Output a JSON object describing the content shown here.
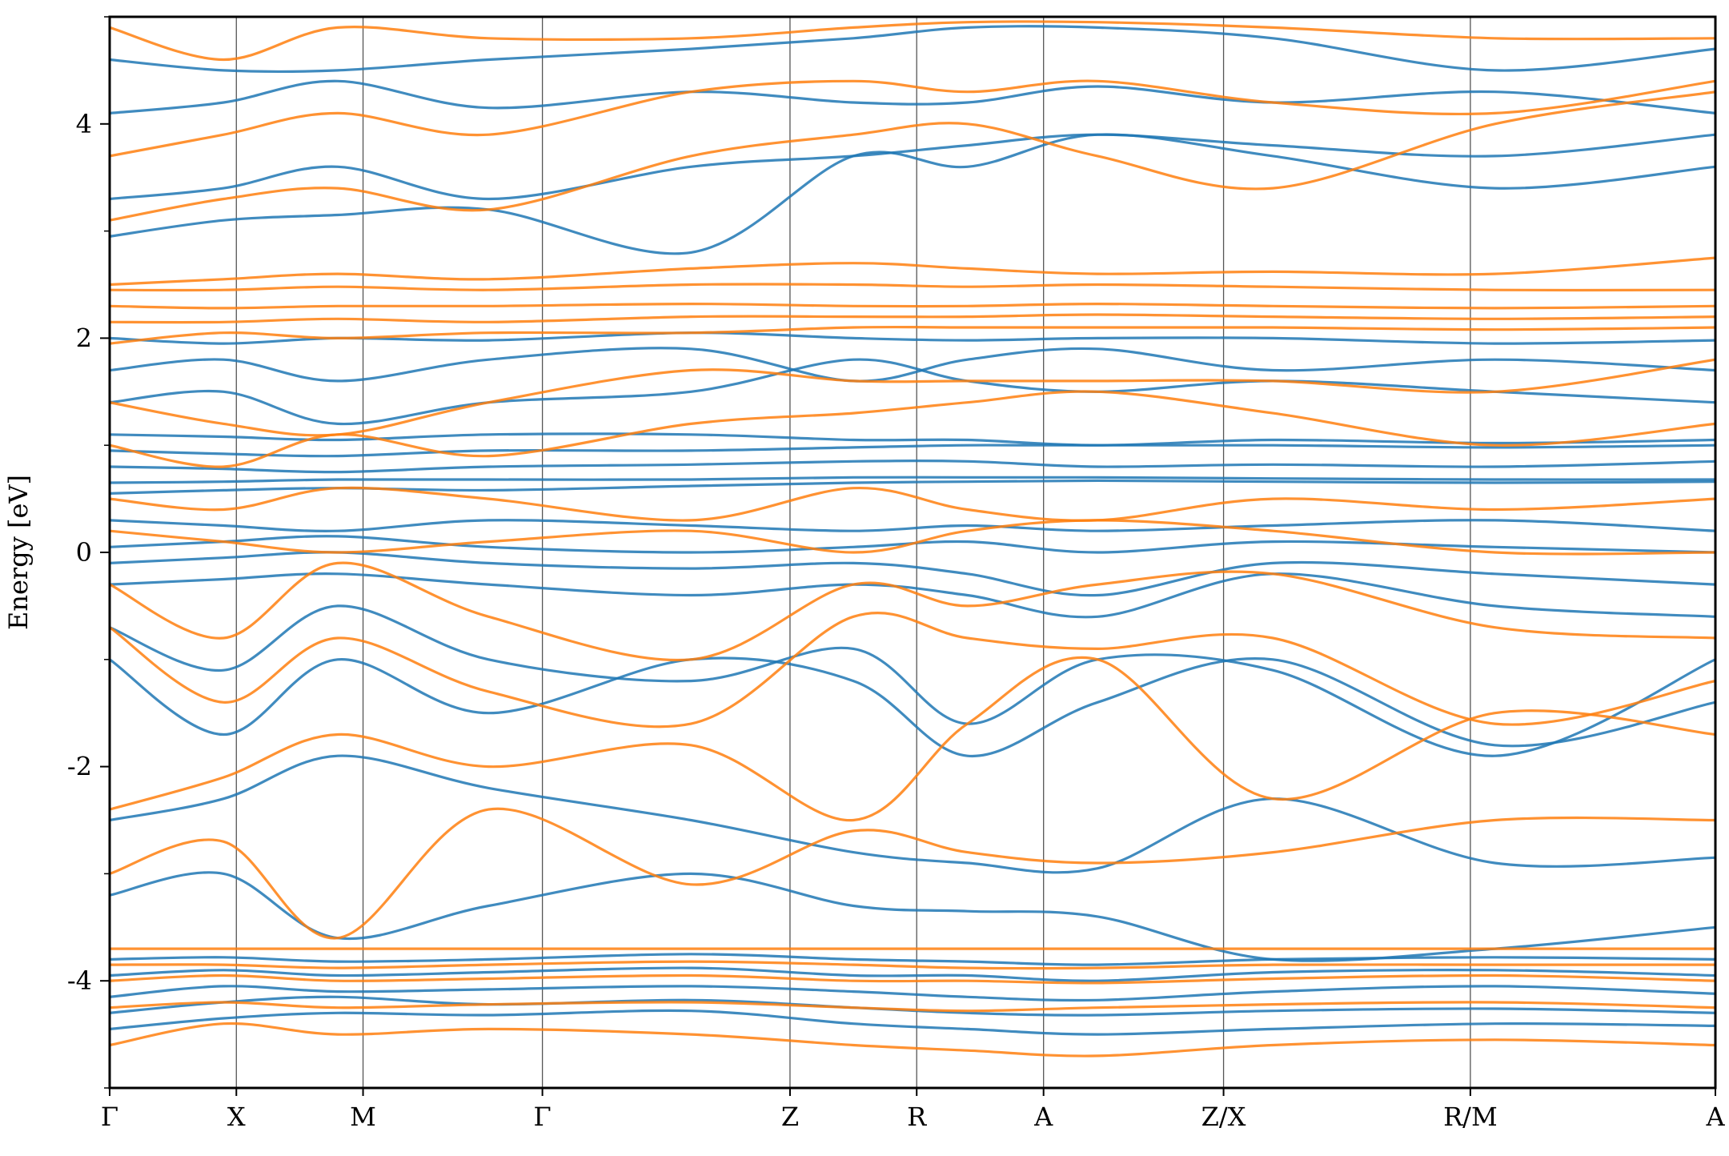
{
  "chart_data": {
    "type": "line",
    "title": "",
    "xlabel": "",
    "ylabel": "Energy [eV]",
    "ylim": [
      -5,
      5
    ],
    "yticks": [
      -4,
      -2,
      0,
      2,
      4
    ],
    "ytick_labels": [
      "-4",
      "-2",
      "0",
      "2",
      "4"
    ],
    "ylim_minor_ticks": [
      -5,
      -3,
      -1,
      1,
      3,
      5
    ],
    "x_domain": [
      0,
      1
    ],
    "kpoints": [
      {
        "label": "Γ",
        "x": 0.0
      },
      {
        "label": "X",
        "x": 0.0789
      },
      {
        "label": "M",
        "x": 0.1578
      },
      {
        "label": "Γ",
        "x": 0.2695
      },
      {
        "label": "Z",
        "x": 0.4237
      },
      {
        "label": "R",
        "x": 0.5026
      },
      {
        "label": "A",
        "x": 0.5816
      },
      {
        "label": "Z/X",
        "x": 0.6937
      },
      {
        "label": "R/M",
        "x": 0.8474
      },
      {
        "label": "A",
        "x": 1.0
      }
    ],
    "grid": false,
    "legend": "none",
    "series_colors": {
      "spin_up": "#1f77b4",
      "spin_down": "#ff7f0e"
    },
    "series": [
      {
        "group": "spin_up",
        "color": "#1f77b4",
        "y": [
          -4.45,
          -4.35,
          -4.3,
          -4.32,
          -4.28,
          -4.4,
          -4.45,
          -4.5,
          -4.45,
          -4.4,
          -4.42
        ]
      },
      {
        "group": "spin_up",
        "color": "#1f77b4",
        "y": [
          -4.3,
          -4.2,
          -4.15,
          -4.22,
          -4.18,
          -4.25,
          -4.3,
          -4.32,
          -4.28,
          -4.26,
          -4.3
        ]
      },
      {
        "group": "spin_up",
        "color": "#1f77b4",
        "y": [
          -4.15,
          -4.05,
          -4.1,
          -4.08,
          -4.05,
          -4.1,
          -4.15,
          -4.18,
          -4.1,
          -4.05,
          -4.12
        ]
      },
      {
        "group": "spin_up",
        "color": "#1f77b4",
        "y": [
          -3.95,
          -3.9,
          -3.95,
          -3.92,
          -3.88,
          -3.95,
          -3.95,
          -4.0,
          -3.92,
          -3.9,
          -3.95
        ]
      },
      {
        "group": "spin_up",
        "color": "#1f77b4",
        "y": [
          -3.8,
          -3.78,
          -3.82,
          -3.8,
          -3.75,
          -3.8,
          -3.82,
          -3.85,
          -3.8,
          -3.78,
          -3.8
        ]
      },
      {
        "group": "spin_up",
        "color": "#1f77b4",
        "y": [
          -3.2,
          -3.0,
          -3.6,
          -3.3,
          -3.0,
          -3.3,
          -3.35,
          -3.4,
          -3.8,
          -3.7,
          -3.5
        ]
      },
      {
        "group": "spin_up",
        "color": "#1f77b4",
        "y": [
          -2.5,
          -2.3,
          -1.9,
          -2.2,
          -2.5,
          -2.8,
          -2.9,
          -2.95,
          -2.3,
          -2.9,
          -2.85
        ]
      },
      {
        "group": "spin_up",
        "color": "#1f77b4",
        "y": [
          -1.0,
          -1.7,
          -1.0,
          -1.5,
          -1.0,
          -1.2,
          -1.9,
          -1.4,
          -1.0,
          -1.8,
          -1.4
        ]
      },
      {
        "group": "spin_up",
        "color": "#1f77b4",
        "y": [
          -0.7,
          -1.1,
          -0.5,
          -1.0,
          -1.2,
          -0.9,
          -1.6,
          -1.0,
          -1.1,
          -1.9,
          -1.0
        ]
      },
      {
        "group": "spin_up",
        "color": "#1f77b4",
        "y": [
          -0.3,
          -0.25,
          -0.2,
          -0.3,
          -0.4,
          -0.3,
          -0.4,
          -0.6,
          -0.2,
          -0.5,
          -0.6
        ]
      },
      {
        "group": "spin_up",
        "color": "#1f77b4",
        "y": [
          -0.1,
          -0.05,
          0.0,
          -0.1,
          -0.15,
          -0.1,
          -0.2,
          -0.4,
          -0.1,
          -0.2,
          -0.3
        ]
      },
      {
        "group": "spin_up",
        "color": "#1f77b4",
        "y": [
          0.05,
          0.1,
          0.15,
          0.05,
          0.0,
          0.05,
          0.1,
          0.0,
          0.1,
          0.05,
          0.0
        ]
      },
      {
        "group": "spin_up",
        "color": "#1f77b4",
        "y": [
          0.3,
          0.25,
          0.2,
          0.3,
          0.25,
          0.2,
          0.25,
          0.2,
          0.25,
          0.3,
          0.2
        ]
      },
      {
        "group": "spin_up",
        "color": "#1f77b4",
        "y": [
          0.55,
          0.58,
          0.6,
          0.58,
          0.62,
          0.65,
          0.66,
          0.67,
          0.66,
          0.65,
          0.66
        ]
      },
      {
        "group": "spin_up",
        "color": "#1f77b4",
        "y": [
          0.65,
          0.66,
          0.68,
          0.68,
          0.68,
          0.7,
          0.7,
          0.7,
          0.69,
          0.68,
          0.68
        ]
      },
      {
        "group": "spin_up",
        "color": "#1f77b4",
        "y": [
          0.8,
          0.78,
          0.75,
          0.8,
          0.82,
          0.85,
          0.85,
          0.8,
          0.82,
          0.8,
          0.85
        ]
      },
      {
        "group": "spin_up",
        "color": "#1f77b4",
        "y": [
          0.95,
          0.92,
          0.9,
          0.95,
          0.95,
          0.98,
          1.0,
          1.0,
          1.0,
          0.98,
          1.0
        ]
      },
      {
        "group": "spin_up",
        "color": "#1f77b4",
        "y": [
          1.1,
          1.08,
          1.05,
          1.1,
          1.1,
          1.05,
          1.05,
          1.0,
          1.05,
          1.02,
          1.05
        ]
      },
      {
        "group": "spin_up",
        "color": "#1f77b4",
        "y": [
          1.4,
          1.5,
          1.2,
          1.4,
          1.5,
          1.8,
          1.6,
          1.5,
          1.6,
          1.5,
          1.4
        ]
      },
      {
        "group": "spin_up",
        "color": "#1f77b4",
        "y": [
          1.7,
          1.8,
          1.6,
          1.8,
          1.9,
          1.6,
          1.8,
          1.9,
          1.7,
          1.8,
          1.7
        ]
      },
      {
        "group": "spin_up",
        "color": "#1f77b4",
        "y": [
          2.0,
          1.95,
          2.0,
          1.98,
          2.05,
          2.0,
          1.98,
          2.0,
          2.0,
          1.95,
          1.98
        ]
      },
      {
        "group": "spin_up",
        "color": "#1f77b4",
        "y": [
          2.95,
          3.1,
          3.15,
          3.2,
          2.8,
          3.7,
          3.6,
          3.9,
          3.7,
          3.4,
          3.6
        ]
      },
      {
        "group": "spin_up",
        "color": "#1f77b4",
        "y": [
          3.3,
          3.4,
          3.6,
          3.3,
          3.6,
          3.7,
          3.8,
          3.9,
          3.8,
          3.7,
          3.9
        ]
      },
      {
        "group": "spin_up",
        "color": "#1f77b4",
        "y": [
          4.1,
          4.2,
          4.4,
          4.15,
          4.3,
          4.2,
          4.2,
          4.35,
          4.2,
          4.3,
          4.1
        ]
      },
      {
        "group": "spin_up",
        "color": "#1f77b4",
        "y": [
          4.6,
          4.5,
          4.5,
          4.6,
          4.7,
          4.8,
          4.9,
          4.9,
          4.8,
          4.5,
          4.7
        ]
      },
      {
        "group": "spin_down",
        "color": "#ff7f0e",
        "y": [
          -4.6,
          -4.4,
          -4.5,
          -4.45,
          -4.5,
          -4.6,
          -4.65,
          -4.7,
          -4.6,
          -4.55,
          -4.6
        ]
      },
      {
        "group": "spin_down",
        "color": "#ff7f0e",
        "y": [
          -4.25,
          -4.2,
          -4.25,
          -4.22,
          -4.2,
          -4.25,
          -4.28,
          -4.25,
          -4.22,
          -4.2,
          -4.25
        ]
      },
      {
        "group": "spin_down",
        "color": "#ff7f0e",
        "y": [
          -4.0,
          -3.95,
          -4.0,
          -3.98,
          -3.95,
          -4.0,
          -4.0,
          -4.02,
          -3.98,
          -3.95,
          -4.0
        ]
      },
      {
        "group": "spin_down",
        "color": "#ff7f0e",
        "y": [
          -3.85,
          -3.85,
          -3.88,
          -3.85,
          -3.82,
          -3.85,
          -3.88,
          -3.88,
          -3.85,
          -3.85,
          -3.85
        ]
      },
      {
        "group": "spin_down",
        "color": "#ff7f0e",
        "y": [
          -3.7,
          -3.7,
          -3.7,
          -3.7,
          -3.7,
          -3.7,
          -3.7,
          -3.7,
          -3.7,
          -3.7,
          -3.7
        ]
      },
      {
        "group": "spin_down",
        "color": "#ff7f0e",
        "y": [
          -3.0,
          -2.7,
          -3.6,
          -2.4,
          -3.1,
          -2.6,
          -2.8,
          -2.9,
          -2.8,
          -2.5,
          -2.5
        ]
      },
      {
        "group": "spin_down",
        "color": "#ff7f0e",
        "y": [
          -2.4,
          -2.1,
          -1.7,
          -2.0,
          -1.8,
          -2.5,
          -1.6,
          -1.0,
          -2.3,
          -1.5,
          -1.7
        ]
      },
      {
        "group": "spin_down",
        "color": "#ff7f0e",
        "y": [
          -0.7,
          -1.4,
          -0.8,
          -1.3,
          -1.6,
          -0.6,
          -0.8,
          -0.9,
          -0.8,
          -1.6,
          -1.2
        ]
      },
      {
        "group": "spin_down",
        "color": "#ff7f0e",
        "y": [
          -0.3,
          -0.8,
          -0.1,
          -0.6,
          -1.0,
          -0.3,
          -0.5,
          -0.3,
          -0.2,
          -0.7,
          -0.8
        ]
      },
      {
        "group": "spin_down",
        "color": "#ff7f0e",
        "y": [
          0.2,
          0.1,
          0.0,
          0.1,
          0.2,
          0.0,
          0.2,
          0.3,
          0.2,
          0.0,
          0.0
        ]
      },
      {
        "group": "spin_down",
        "color": "#ff7f0e",
        "y": [
          0.5,
          0.4,
          0.6,
          0.5,
          0.3,
          0.6,
          0.4,
          0.3,
          0.5,
          0.4,
          0.5
        ]
      },
      {
        "group": "spin_down",
        "color": "#ff7f0e",
        "y": [
          1.0,
          0.8,
          1.1,
          0.9,
          1.2,
          1.3,
          1.4,
          1.5,
          1.3,
          1.0,
          1.2
        ]
      },
      {
        "group": "spin_down",
        "color": "#ff7f0e",
        "y": [
          1.4,
          1.2,
          1.1,
          1.4,
          1.7,
          1.6,
          1.6,
          1.6,
          1.6,
          1.5,
          1.8
        ]
      },
      {
        "group": "spin_down",
        "color": "#ff7f0e",
        "y": [
          1.95,
          2.05,
          2.0,
          2.05,
          2.05,
          2.1,
          2.1,
          2.1,
          2.1,
          2.08,
          2.1
        ]
      },
      {
        "group": "spin_down",
        "color": "#ff7f0e",
        "y": [
          2.15,
          2.15,
          2.18,
          2.15,
          2.2,
          2.2,
          2.2,
          2.22,
          2.2,
          2.18,
          2.2
        ]
      },
      {
        "group": "spin_down",
        "color": "#ff7f0e",
        "y": [
          2.3,
          2.28,
          2.3,
          2.3,
          2.32,
          2.3,
          2.3,
          2.32,
          2.3,
          2.28,
          2.3
        ]
      },
      {
        "group": "spin_down",
        "color": "#ff7f0e",
        "y": [
          2.45,
          2.45,
          2.48,
          2.45,
          2.5,
          2.5,
          2.48,
          2.5,
          2.48,
          2.45,
          2.45
        ]
      },
      {
        "group": "spin_down",
        "color": "#ff7f0e",
        "y": [
          2.5,
          2.55,
          2.6,
          2.55,
          2.65,
          2.7,
          2.65,
          2.6,
          2.62,
          2.6,
          2.75
        ]
      },
      {
        "group": "spin_down",
        "color": "#ff7f0e",
        "y": [
          3.1,
          3.3,
          3.4,
          3.2,
          3.7,
          3.9,
          4.0,
          3.7,
          3.4,
          4.0,
          4.3
        ]
      },
      {
        "group": "spin_down",
        "color": "#ff7f0e",
        "y": [
          3.7,
          3.9,
          4.1,
          3.9,
          4.3,
          4.4,
          4.3,
          4.4,
          4.2,
          4.1,
          4.4
        ]
      },
      {
        "group": "spin_down",
        "color": "#ff7f0e",
        "y": [
          4.9,
          4.6,
          4.9,
          4.8,
          4.8,
          4.9,
          4.95,
          4.95,
          4.9,
          4.8,
          4.8
        ]
      }
    ]
  }
}
